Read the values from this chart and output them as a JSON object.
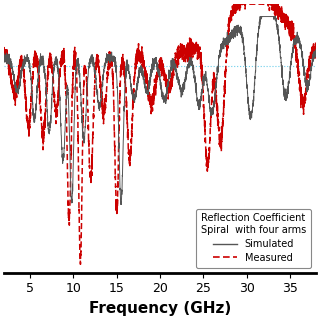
{
  "title": "",
  "xlabel": "Frequency (GHz)",
  "ylabel": "",
  "xlim": [
    2,
    38
  ],
  "ylim": [
    -60,
    5
  ],
  "hline_y": -10,
  "hline_color": "#5bc8e8",
  "background_color": "#ffffff",
  "legend_title_line1": "Reflection Coefficient",
  "legend_title_line2": "Spiral  with four arms",
  "legend_sim_label": "Simulated",
  "legend_meas_label": "Measured",
  "sim_color": "#555555",
  "meas_color": "#cc0000",
  "xticks": [
    5,
    10,
    15,
    20,
    25,
    30,
    35
  ],
  "xlabel_fontsize": 11,
  "tick_fontsize": 9,
  "figsize": [
    3.2,
    3.2
  ],
  "dpi": 100
}
